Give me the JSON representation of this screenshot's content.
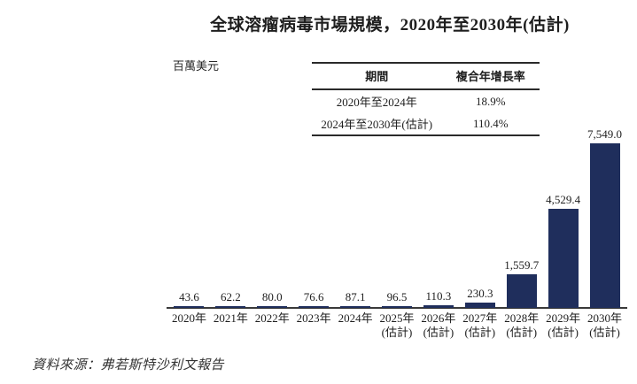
{
  "title": "全球溶瘤病毒市場規模，2020年至2030年(估計)",
  "unit_label": "百萬美元",
  "cagr_table": {
    "headers": [
      "期間",
      "複合年增長率"
    ],
    "rows": [
      {
        "period": "2020年至2024年",
        "cagr": "18.9%"
      },
      {
        "period": "2024年至2030年(估計)",
        "cagr": "110.4%"
      }
    ]
  },
  "source": "資料來源：弗若斯特沙利文報告",
  "colors": {
    "bar": "#1f2e5c",
    "axis": "#3a3a3a",
    "text": "#1e1e1e"
  },
  "chart_data": {
    "type": "bar",
    "title": "全球溶瘤病毒市場規模，2020年至2030年(估計)",
    "ylabel": "百萬美元",
    "xlabel": "",
    "categories": [
      "2020年",
      "2021年",
      "2022年",
      "2023年",
      "2024年",
      "2025年",
      "2026年",
      "2027年",
      "2028年",
      "2029年",
      "2030年"
    ],
    "category_notes": [
      "",
      "",
      "",
      "",
      "",
      "(估計)",
      "(估計)",
      "(估計)",
      "(估計)",
      "(估計)",
      "(估計)"
    ],
    "values": [
      43.6,
      62.2,
      80.0,
      76.6,
      87.1,
      96.5,
      110.3,
      230.3,
      1559.7,
      4529.4,
      7549.0
    ],
    "value_labels": [
      "43.6",
      "62.2",
      "80.0",
      "76.6",
      "87.1",
      "96.5",
      "110.3",
      "230.3",
      "1,559.7",
      "4,529.4",
      "7,549.0"
    ],
    "ylim": [
      0,
      7800
    ],
    "grid": false,
    "legend": null,
    "cagr_rows": [
      {
        "period": "2020年至2024年",
        "cagr_percent": 18.9
      },
      {
        "period": "2024年至2030年(估計)",
        "cagr_percent": 110.4
      }
    ]
  }
}
